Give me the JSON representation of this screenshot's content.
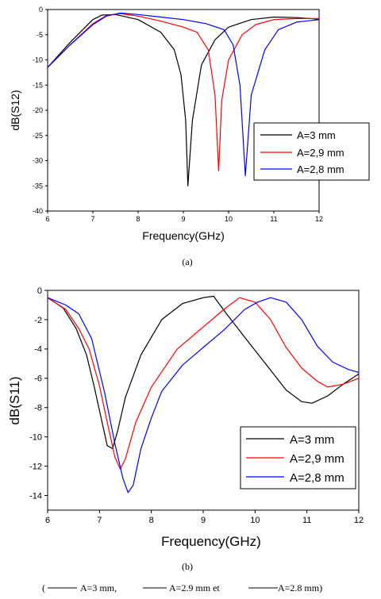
{
  "colors": {
    "s1": "#000000",
    "s2": "#ff0000",
    "s3": "#0000ff"
  },
  "legend_placement": "bottom-right",
  "chart_data": [
    {
      "type": "line",
      "caption": "(a)",
      "xlabel": "Frequency(GHz)",
      "ylabel": "dB(S12)",
      "xlim": [
        6,
        12
      ],
      "ylim": [
        -40,
        0
      ],
      "xticks": [
        "6",
        "7",
        "8",
        "9",
        "10",
        "11",
        "12"
      ],
      "yticks": [
        "0",
        "-5",
        "-10",
        "-15",
        "-20",
        "-25",
        "-30",
        "-35",
        "-40"
      ],
      "grid": false,
      "series": [
        {
          "name": "A=3 mm",
          "x": [
            6.0,
            6.5,
            7.0,
            7.2,
            7.5,
            8.0,
            8.5,
            8.8,
            8.95,
            9.05,
            9.1,
            9.2,
            9.4,
            9.7,
            10.0,
            10.5,
            11.0,
            11.5,
            12.0
          ],
          "y": [
            -11.5,
            -6.5,
            -2.0,
            -1.1,
            -1.0,
            -2.0,
            -4.5,
            -8.0,
            -13.0,
            -22.0,
            -35.0,
            -22.0,
            -11.0,
            -6.0,
            -3.5,
            -2.0,
            -1.5,
            -1.6,
            -1.9
          ]
        },
        {
          "name": "A=2,9 mm",
          "x": [
            6.0,
            6.5,
            7.0,
            7.3,
            7.6,
            8.0,
            8.5,
            9.0,
            9.3,
            9.55,
            9.7,
            9.78,
            9.85,
            10.0,
            10.3,
            10.6,
            11.0,
            11.5,
            12.0
          ],
          "y": [
            -11.5,
            -7.0,
            -2.8,
            -1.2,
            -0.8,
            -1.3,
            -2.3,
            -3.5,
            -4.5,
            -8.0,
            -17.0,
            -32.0,
            -18.0,
            -10.0,
            -5.0,
            -3.0,
            -2.0,
            -1.8,
            -1.8
          ]
        },
        {
          "name": "A=2,8 mm",
          "x": [
            6.0,
            6.5,
            7.0,
            7.3,
            7.6,
            8.0,
            8.5,
            9.0,
            9.5,
            9.9,
            10.1,
            10.25,
            10.37,
            10.5,
            10.8,
            11.1,
            11.5,
            12.0
          ],
          "y": [
            -11.5,
            -7.0,
            -3.0,
            -1.3,
            -0.7,
            -1.0,
            -1.5,
            -2.0,
            -2.8,
            -4.0,
            -7.0,
            -15.0,
            -33.0,
            -17.0,
            -8.0,
            -4.0,
            -2.5,
            -2.0
          ]
        }
      ]
    },
    {
      "type": "line",
      "caption": "(b)",
      "xlabel": "Frequency(GHz)",
      "ylabel": "dB(S11)",
      "xlim": [
        6,
        12
      ],
      "ylim": [
        -15,
        0
      ],
      "xticks": [
        "6",
        "7",
        "8",
        "9",
        "10",
        "11",
        "12"
      ],
      "yticks": [
        "0",
        "-2",
        "-4",
        "-6",
        "-8",
        "-10",
        "-12",
        "-14"
      ],
      "grid": false,
      "series": [
        {
          "name": "A=3 mm",
          "x": [
            6.0,
            6.3,
            6.55,
            6.75,
            6.9,
            7.05,
            7.15,
            7.25,
            7.35,
            7.5,
            7.8,
            8.2,
            8.6,
            9.0,
            9.2,
            9.45,
            9.8,
            10.2,
            10.6,
            10.9,
            11.1,
            11.4,
            11.7,
            12.0
          ],
          "y": [
            -0.5,
            -1.2,
            -2.6,
            -4.4,
            -6.6,
            -9.0,
            -10.6,
            -10.8,
            -9.6,
            -7.3,
            -4.4,
            -2.0,
            -0.9,
            -0.5,
            -0.4,
            -1.6,
            -3.2,
            -5.0,
            -6.8,
            -7.6,
            -7.7,
            -7.2,
            -6.4,
            -5.7
          ]
        },
        {
          "name": "A=2,9 mm",
          "x": [
            6.0,
            6.35,
            6.6,
            6.8,
            7.0,
            7.15,
            7.3,
            7.4,
            7.5,
            7.7,
            8.0,
            8.5,
            9.0,
            9.4,
            9.7,
            10.0,
            10.3,
            10.6,
            10.9,
            11.2,
            11.4,
            11.7,
            12.0
          ],
          "y": [
            -0.5,
            -1.3,
            -2.6,
            -4.0,
            -6.5,
            -9.0,
            -11.4,
            -12.2,
            -11.5,
            -9.0,
            -6.6,
            -4.0,
            -2.5,
            -1.3,
            -0.5,
            -0.8,
            -2.0,
            -3.9,
            -5.3,
            -6.2,
            -6.6,
            -6.4,
            -6.0
          ]
        },
        {
          "name": "A=2,8 mm",
          "x": [
            6.0,
            6.35,
            6.6,
            6.85,
            7.1,
            7.3,
            7.45,
            7.55,
            7.65,
            7.8,
            8.0,
            8.2,
            8.6,
            9.0,
            9.4,
            9.8,
            10.05,
            10.3,
            10.6,
            10.9,
            11.2,
            11.5,
            11.8,
            12.0
          ],
          "y": [
            -0.5,
            -1.0,
            -1.6,
            -3.3,
            -7.0,
            -10.5,
            -12.8,
            -13.8,
            -13.3,
            -10.8,
            -8.7,
            -6.9,
            -5.1,
            -3.9,
            -2.7,
            -1.3,
            -0.8,
            -0.5,
            -0.8,
            -2.0,
            -3.8,
            -4.9,
            -5.4,
            -5.6
          ]
        }
      ]
    }
  ],
  "footer": {
    "item1": "A=3 mm,",
    "item2": "A=2.9 mm et",
    "item3": "A=2.8 mm)",
    "open_paren": "("
  }
}
